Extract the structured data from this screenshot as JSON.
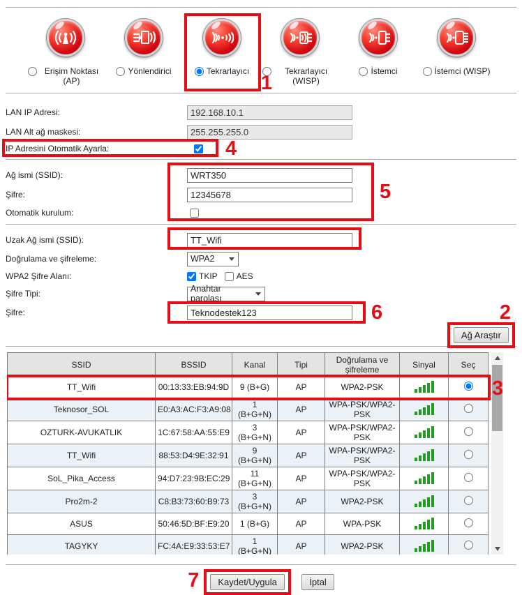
{
  "colors": {
    "annotation_red": "#e60d14",
    "orb_red": "#d40713",
    "signal_green": "#259a25",
    "alt_row": "#eaf2f7"
  },
  "modes": {
    "items": [
      {
        "label": "Erişim Noktası (AP)",
        "icon": "access-point-icon"
      },
      {
        "label": "Yönlendirici",
        "icon": "router-icon"
      },
      {
        "label": "Tekrarlayıcı",
        "icon": "repeater-icon",
        "selected": "checked"
      },
      {
        "label": "Tekrarlayıcı (WISP)",
        "icon": "repeater-wisp-icon"
      },
      {
        "label": "İstemci",
        "icon": "client-icon"
      },
      {
        "label": "İstemci (WISP)",
        "icon": "client-wisp-icon"
      }
    ]
  },
  "lan": {
    "ip_label": "LAN IP Adresi:",
    "ip_value": "192.168.10.1",
    "mask_label": "LAN Alt ağ maskesi:",
    "mask_value": "255.255.255.0",
    "auto_ip_label": "IP Adresini Otomatik Ayarla:",
    "auto_ip_checked": "checked"
  },
  "local_wifi": {
    "ssid_label": "Ağ ismi (SSID):",
    "ssid_value": "WRT350",
    "password_label": "Şifre:",
    "password_value": "12345678",
    "auto_setup_label": "Otomatik kurulum:"
  },
  "remote_wifi": {
    "remote_ssid_label": "Uzak Ağ ismi (SSID):",
    "remote_ssid_value": "TT_Wifi",
    "auth_label": "Doğrulama ve şifreleme:",
    "auth_value": "WPA2",
    "cipher_label": "WPA2 Şifre Alanı:",
    "tkip_label": "TKIP",
    "tkip_checked": "checked",
    "aes_label": "AES",
    "key_type_label": "Şifre Tipi:",
    "key_type_value": "Anahtar parolası",
    "password_label": "Şifre:",
    "password_value": "Teknodestek123",
    "scan_button": "Ağ Araştır"
  },
  "table": {
    "headers": [
      "SSID",
      "BSSID",
      "Kanal",
      "Tipi",
      "Doğrulama ve şifreleme",
      "Sinyal",
      "Seç"
    ],
    "rows": [
      {
        "ssid": "TT_Wifi",
        "bssid": "00:13:33:EB:94:9D",
        "channel": "9 (B+G)",
        "type": "AP",
        "auth": "WPA2-PSK",
        "signal": 5,
        "selected": true
      },
      {
        "ssid": "Teknosor_SOL",
        "bssid": "E0:A3:AC:F3:A9:08",
        "channel": "1 (B+G+N)",
        "type": "AP",
        "auth": "WPA-PSK/WPA2-PSK",
        "signal": 5,
        "selected": false
      },
      {
        "ssid": "OZTURK-AVUKATLIK",
        "bssid": "1C:67:58:AA:55:E9",
        "channel": "3 (B+G+N)",
        "type": "AP",
        "auth": "WPA-PSK/WPA2-PSK",
        "signal": 5,
        "selected": false
      },
      {
        "ssid": "TT_Wifi",
        "bssid": "88:53:D4:9E:32:91",
        "channel": "9 (B+G+N)",
        "type": "AP",
        "auth": "WPA-PSK/WPA2-PSK",
        "signal": 5,
        "selected": false
      },
      {
        "ssid": "SoL_Pika_Access",
        "bssid": "94:D7:23:9B:EC:29",
        "channel": "11 (B+G+N)",
        "type": "AP",
        "auth": "WPA-PSK/WPA2-PSK",
        "signal": 5,
        "selected": false
      },
      {
        "ssid": "Pro2m-2",
        "bssid": "C8:B3:73:60:B9:73",
        "channel": "3 (B+G+N)",
        "type": "AP",
        "auth": "WPA2-PSK",
        "signal": 5,
        "selected": false
      },
      {
        "ssid": "ASUS",
        "bssid": "50:46:5D:BF:E9:20",
        "channel": "1 (B+G)",
        "type": "AP",
        "auth": "WPA-PSK",
        "signal": 5,
        "selected": false
      },
      {
        "ssid": "TAGYKY",
        "bssid": "FC:4A:E9:33:53:E7",
        "channel": "1 (B+G+N)",
        "type": "AP",
        "auth": "WPA2-PSK",
        "signal": 5,
        "selected": false
      }
    ]
  },
  "footer": {
    "save_button": "Kaydet/Uygula",
    "cancel_button": "İptal"
  },
  "annotations": {
    "step1": "1",
    "step2": "2",
    "step3": "3",
    "step4": "4",
    "step5": "5",
    "step6": "6",
    "step7": "7"
  }
}
